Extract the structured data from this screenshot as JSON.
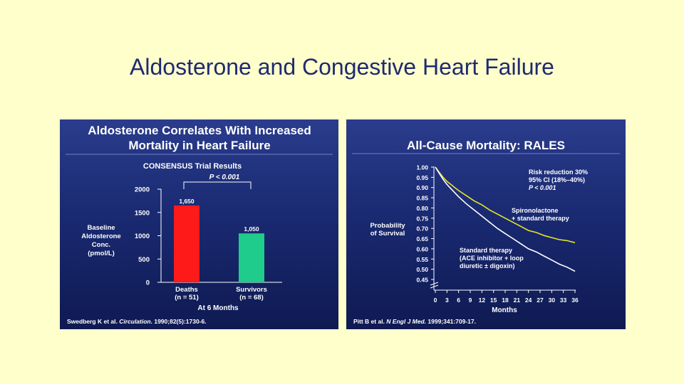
{
  "slide": {
    "title": "Aldosterone and Congestive Heart Failure"
  },
  "colors": {
    "background": "#ffffcc",
    "title": "#1f2a6e",
    "panel": "#1a2a72",
    "deaths_bar": "#ff1a1a",
    "survivors_bar": "#1fcc8c",
    "spironolactone_line": "#e6e626",
    "standard_line": "#ffffff"
  },
  "left_panel": {
    "title_line1": "Aldosterone Correlates With Increased",
    "title_line2": "Mortality in Heart Failure",
    "subtitle": "CONSENSUS Trial Results",
    "pvalue": "P < 0.001",
    "ylabel_lines": [
      "Baseline",
      "Aldosterone",
      "Conc.",
      "(pmol/L)"
    ],
    "xlabel": "At 6 Months",
    "category_labels": [
      [
        "Deaths",
        "(n = 51)"
      ],
      [
        "Survivors",
        "(n = 68)"
      ]
    ],
    "value_labels": [
      "1,650",
      "1,050"
    ],
    "citation_before": "Swedberg K et al. ",
    "citation_journal": "Circulation.",
    "citation_after": " 1990;82(5):1730-6."
  },
  "right_panel": {
    "title": "All-Cause Mortality: RALES",
    "ylabel_lines": [
      "Probability",
      "of Survival"
    ],
    "xlabel": "Months",
    "risk_lines": [
      "Risk reduction 30%",
      "95% CI (18%–40%)",
      "P < 0.001"
    ],
    "spiro_label_lines": [
      "Spironolactone",
      "+ standard therapy"
    ],
    "standard_label_lines": [
      "Standard therapy",
      "(ACE inhibitor + loop",
      "diuretic ± digoxin)"
    ],
    "citation_before": "Pitt B et al. ",
    "citation_journal": "N Engl J Med.",
    "citation_after": " 1999;341:709-17."
  },
  "chart_data": [
    {
      "type": "bar",
      "title": "Aldosterone Correlates With Increased Mortality in Heart Failure",
      "subtitle": "CONSENSUS Trial Results",
      "categories": [
        "Deaths (n = 51)",
        "Survivors (n = 68)"
      ],
      "values": [
        1650,
        1050
      ],
      "value_labels": [
        "1,650",
        "1,050"
      ],
      "xlabel": "At 6 Months",
      "ylabel": "Baseline Aldosterone Conc. (pmol/L)",
      "ylim": [
        0,
        2000
      ],
      "yticks": [
        0,
        500,
        1000,
        1500,
        2000
      ],
      "annotation": "P < 0.001",
      "grid": false
    },
    {
      "type": "line",
      "title": "All-Cause Mortality: RALES",
      "xlabel": "Months",
      "ylabel": "Probability of Survival",
      "xlim": [
        0,
        36
      ],
      "ylim": [
        0.45,
        1.0
      ],
      "xticks": [
        0,
        3,
        6,
        9,
        12,
        15,
        18,
        21,
        24,
        27,
        30,
        33,
        36
      ],
      "yticks": [
        0.45,
        0.5,
        0.55,
        0.6,
        0.65,
        0.7,
        0.75,
        0.8,
        0.85,
        0.9,
        0.95,
        1.0
      ],
      "y_axis_break": true,
      "grid": false,
      "series": [
        {
          "name": "Spironolactone + standard therapy",
          "x": [
            0,
            1,
            2,
            3,
            4,
            5,
            6,
            8,
            10,
            12,
            14,
            16,
            18,
            20,
            22,
            24,
            26,
            28,
            30,
            32,
            34,
            36
          ],
          "y": [
            1.0,
            0.975,
            0.95,
            0.93,
            0.915,
            0.9,
            0.885,
            0.86,
            0.835,
            0.815,
            0.79,
            0.77,
            0.75,
            0.73,
            0.71,
            0.69,
            0.68,
            0.665,
            0.655,
            0.645,
            0.64,
            0.63
          ]
        },
        {
          "name": "Standard therapy (ACE inhibitor + loop diuretic ± digoxin)",
          "x": [
            0,
            1,
            2,
            3,
            4,
            5,
            6,
            8,
            10,
            12,
            14,
            16,
            18,
            20,
            22,
            24,
            26,
            28,
            30,
            32,
            34,
            36
          ],
          "y": [
            1.0,
            0.97,
            0.94,
            0.915,
            0.895,
            0.875,
            0.855,
            0.82,
            0.79,
            0.76,
            0.73,
            0.7,
            0.675,
            0.65,
            0.625,
            0.6,
            0.585,
            0.565,
            0.545,
            0.525,
            0.51,
            0.49
          ]
        }
      ]
    }
  ]
}
